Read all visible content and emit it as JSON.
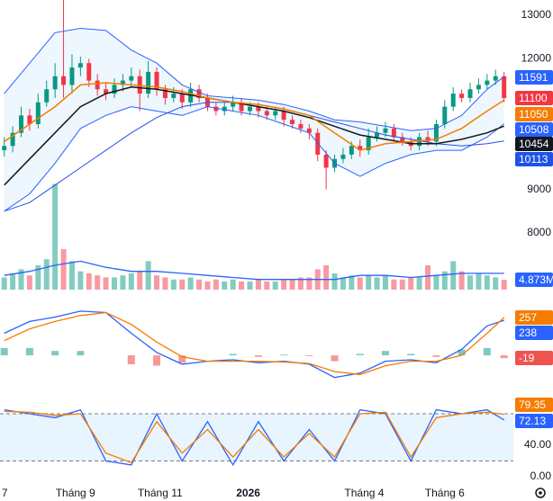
{
  "chart_data": [
    {
      "type": "candlestick",
      "open": [
        9900,
        10000,
        10300,
        10700,
        10500,
        11000,
        11300,
        11600,
        11400,
        11800,
        11900,
        11500,
        11300,
        11200,
        11400,
        11500,
        11600,
        11200,
        11700,
        11300,
        11100,
        11200,
        11000,
        11300,
        11100,
        10900,
        10800,
        10900,
        11000,
        10800,
        10900,
        10800,
        10700,
        10800,
        10600,
        10500,
        10400,
        10300,
        9800,
        9500,
        9700,
        9800,
        10000,
        9900,
        10200,
        10300,
        10400,
        10200,
        10100,
        10000,
        10200,
        10100,
        10500,
        10900,
        11200,
        11100,
        11300,
        11400,
        11500,
        11600
      ],
      "high": [
        10200,
        10450,
        10900,
        10850,
        11200,
        11500,
        11900,
        13350,
        12100,
        12050,
        12000,
        11650,
        11450,
        11550,
        11650,
        11800,
        11750,
        11950,
        11800,
        11400,
        11350,
        11300,
        11450,
        11400,
        11200,
        11000,
        11000,
        11150,
        11100,
        11000,
        11000,
        10900,
        10900,
        10900,
        10700,
        10600,
        10500,
        10400,
        9900,
        9800,
        9950,
        10100,
        10150,
        10400,
        10450,
        10550,
        10500,
        10300,
        10200,
        10300,
        10350,
        10600,
        11050,
        11350,
        11300,
        11450,
        11550,
        11650,
        11750,
        11700
      ],
      "low": [
        9750,
        9850,
        10200,
        10350,
        10400,
        10900,
        11100,
        11100,
        11200,
        11600,
        11350,
        11150,
        11050,
        11100,
        11250,
        11350,
        10800,
        11100,
        11150,
        10950,
        11000,
        10850,
        10900,
        11000,
        10800,
        10700,
        10700,
        10800,
        10700,
        10700,
        10650,
        10600,
        10600,
        10450,
        10400,
        10300,
        10150,
        9650,
        9000,
        9400,
        9600,
        9700,
        9750,
        9800,
        10100,
        10200,
        10100,
        10000,
        9900,
        9900,
        10000,
        10000,
        10400,
        10800,
        11000,
        11000,
        11200,
        11300,
        11400,
        11000
      ],
      "close": [
        10000,
        10300,
        10700,
        10500,
        11000,
        11300,
        11600,
        11400,
        11800,
        11900,
        11500,
        11300,
        11200,
        11400,
        11500,
        11600,
        11200,
        11700,
        11300,
        11100,
        11200,
        11000,
        11300,
        11100,
        10900,
        10800,
        10900,
        11000,
        10800,
        10900,
        10800,
        10700,
        10800,
        10600,
        10500,
        10400,
        10300,
        9800,
        9500,
        9700,
        9800,
        10000,
        9900,
        10200,
        10300,
        10400,
        10200,
        10100,
        10000,
        10200,
        10100,
        10500,
        10900,
        11200,
        11100,
        11300,
        11400,
        11500,
        11600,
        11100
      ],
      "up_color": "#089981",
      "down_color": "#f23645",
      "xlim": [
        -0.5,
        60.1
      ],
      "ylim": [
        6700,
        13350
      ],
      "yticks": [
        8000,
        9000,
        10000,
        11000,
        12000,
        13000
      ],
      "line_x": [
        0,
        3,
        6,
        9,
        12,
        15,
        18,
        21,
        24,
        27,
        30,
        33,
        36,
        39,
        42,
        45,
        48,
        51,
        54,
        57,
        59
      ],
      "series": [
        {
          "color": "#2962ff",
          "values": [
            11200,
            11900,
            12600,
            12700,
            12650,
            12200,
            11900,
            11400,
            11150,
            11100,
            11050,
            10950,
            10800,
            10600,
            10550,
            10450,
            10350,
            10400,
            10700,
            11300,
            11591
          ]
        },
        {
          "color": "#2962ff",
          "values": [
            8500,
            8900,
            9600,
            10400,
            10700,
            10900,
            10800,
            10700,
            10900,
            10800,
            10700,
            10500,
            10300,
            9600,
            9300,
            9600,
            9800,
            9900,
            9900,
            10200,
            10508
          ]
        },
        {
          "color": "#1e53e5",
          "values": [
            8500,
            8700,
            9100,
            9500,
            9900,
            10300,
            10650,
            10900,
            11000,
            11000,
            10950,
            10850,
            10700,
            10550,
            10400,
            10250,
            10150,
            10050,
            10000,
            10050,
            10113
          ]
        },
        {
          "color": "#131722",
          "values": [
            9100,
            9700,
            10300,
            10900,
            11200,
            11350,
            11300,
            11200,
            11100,
            11000,
            10900,
            10800,
            10650,
            10450,
            10250,
            10150,
            10050,
            10050,
            10150,
            10300,
            10454
          ]
        },
        {
          "color": "#f57c00",
          "values": [
            10100,
            10500,
            10900,
            11400,
            11450,
            11400,
            11350,
            11250,
            11100,
            11000,
            10950,
            10850,
            10700,
            10300,
            9900,
            10050,
            10100,
            10150,
            10400,
            10800,
            11050
          ]
        }
      ],
      "price_labels": [
        {
          "value": 11591,
          "color": "#2962ff"
        },
        {
          "value": 11100,
          "color": "#f23645"
        },
        {
          "value": 11050,
          "color": "#f57c00"
        },
        {
          "value": 10508,
          "color": "#2962ff"
        },
        {
          "value": 10454,
          "color": "#131722"
        },
        {
          "value": 10113,
          "color": "#1e53e5"
        }
      ],
      "xticks": [
        {
          "value": -0.3,
          "label": "7"
        },
        {
          "value": 8.4,
          "label": "Tháng 9"
        },
        {
          "value": 18.4,
          "label": "Tháng 11"
        },
        {
          "value": 28.8,
          "label": "2026"
        },
        {
          "value": 42.5,
          "label": "Tháng 4"
        },
        {
          "value": 52,
          "label": "Tháng 6"
        }
      ]
    },
    {
      "type": "volume",
      "values": [
        6000000,
        8000000,
        10000000,
        7000000,
        12000000,
        15000000,
        52000000,
        20000000,
        14000000,
        9000000,
        8000000,
        7000000,
        6000000,
        6000000,
        7000000,
        8000000,
        9000000,
        14000000,
        7000000,
        6000000,
        5000000,
        5000000,
        6000000,
        5000000,
        4000000,
        5000000,
        4000000,
        5000000,
        4000000,
        4000000,
        5000000,
        4000000,
        4000000,
        5000000,
        5000000,
        6000000,
        6000000,
        10000000,
        12000000,
        8000000,
        6000000,
        7000000,
        6000000,
        7000000,
        6000000,
        7000000,
        5000000,
        5000000,
        6000000,
        6000000,
        12000000,
        7000000,
        9000000,
        14000000,
        9000000,
        7000000,
        8000000,
        7000000,
        6000000,
        4873000
      ],
      "ylim": [
        0,
        142600000
      ],
      "ma": {
        "color": "#2962ff",
        "values": [
          7000000,
          9000000,
          12000000,
          14000000,
          11000000,
          9000000,
          9000000,
          8000000,
          7000000,
          6000000,
          5000000,
          5000000,
          5000000,
          5000000,
          7000000,
          7000000,
          6000000,
          7000000,
          8000000,
          8000000,
          8000000
        ]
      },
      "last": {
        "value": 4873000,
        "label": "4.873M",
        "color": "#2962ff"
      }
    },
    {
      "type": "macd",
      "ylim": [
        -213,
        397
      ],
      "macd": {
        "color": "#2962ff",
        "values": [
          150,
          230,
          260,
          300,
          290,
          150,
          20,
          -60,
          -40,
          -30,
          -50,
          -40,
          -60,
          -150,
          -120,
          -40,
          -30,
          -50,
          40,
          200,
          238
        ]
      },
      "signal": {
        "color": "#f57c00",
        "values": [
          100,
          180,
          230,
          270,
          290,
          210,
          90,
          -10,
          -40,
          -40,
          -40,
          -45,
          -55,
          -110,
          -130,
          -70,
          -40,
          -40,
          0,
          150,
          257
        ]
      },
      "histogram": {
        "up_color": "#26a69a",
        "down_color": "#ef5350",
        "values": [
          50,
          50,
          30,
          30,
          0,
          -60,
          -70,
          -50,
          0,
          10,
          -10,
          5,
          -5,
          -40,
          10,
          30,
          10,
          -10,
          40,
          50,
          -19
        ]
      },
      "labels": [
        {
          "value": 257,
          "color": "#f57c00"
        },
        {
          "value": 238,
          "color": "#2962ff"
        },
        {
          "value": -19,
          "color": "#ef5350"
        }
      ]
    },
    {
      "type": "stochastic",
      "ylim": [
        0,
        100
      ],
      "yticks": [
        {
          "value": 40,
          "label": "40.00"
        },
        {
          "value": 0,
          "label": "0.00"
        }
      ],
      "bands": [
        20,
        80
      ],
      "k": {
        "color": "#2962ff",
        "values": [
          85,
          80,
          75,
          85,
          20,
          15,
          80,
          20,
          70,
          15,
          70,
          20,
          60,
          20,
          85,
          80,
          20,
          85,
          80,
          85,
          72.13
        ]
      },
      "d": {
        "color": "#f57c00",
        "values": [
          83,
          82,
          78,
          80,
          30,
          18,
          70,
          30,
          60,
          25,
          60,
          25,
          55,
          25,
          80,
          82,
          25,
          75,
          80,
          82,
          79.35
        ]
      },
      "labels": [
        {
          "value": 79.35,
          "color": "#f57c00"
        },
        {
          "value": 72.13,
          "color": "#2962ff"
        }
      ]
    }
  ]
}
